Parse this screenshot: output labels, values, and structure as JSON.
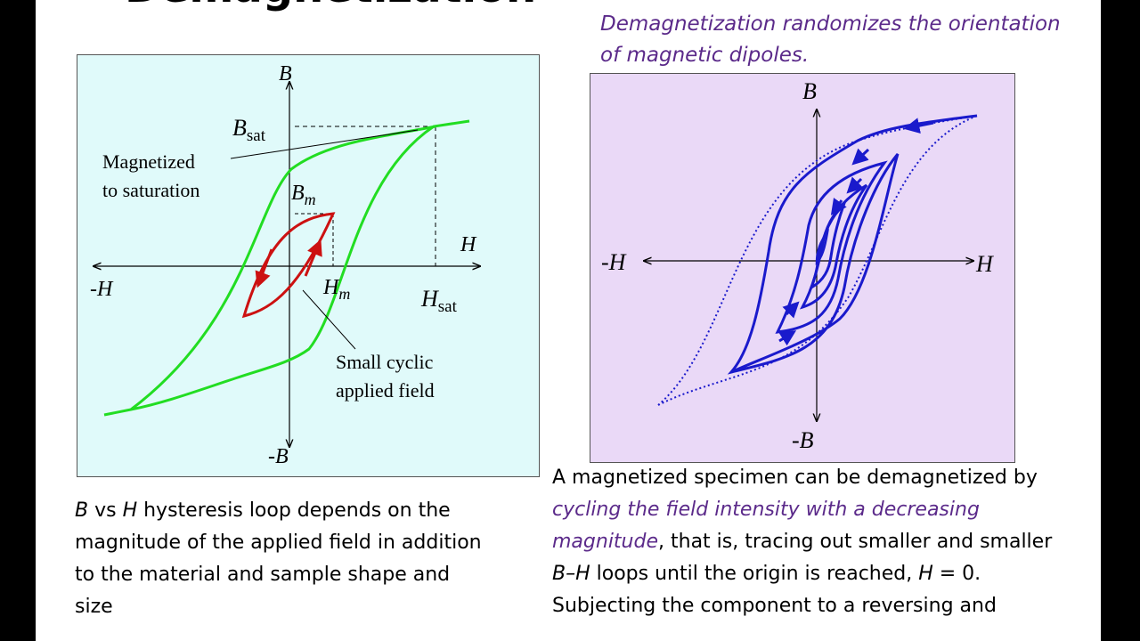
{
  "slide": {
    "title": "Demagnetization",
    "caption": "Demagnetization randomizes the orientation of magnetic dipoles."
  },
  "left_diagram": {
    "axis_y_label": "B",
    "axis_y_neg_label": "-B",
    "axis_x_label": "H",
    "axis_x_neg_label": "-H",
    "bsat_main": "B",
    "bsat_sub": "sat",
    "bm_main": "B",
    "bm_sub": "m",
    "hm_main": "H",
    "hm_sub": "m",
    "hsat_main": "H",
    "hsat_sub": "sat",
    "annotation_saturation_line1": "Magnetized",
    "annotation_saturation_line2": "to saturation",
    "annotation_small_line1": "Small cyclic",
    "annotation_small_line2": "applied field",
    "colors": {
      "major_loop": "#22dd22",
      "minor_loop": "#cc1111",
      "background": "#e0fafa"
    }
  },
  "right_diagram": {
    "axis_y_label": "B",
    "axis_y_neg_label": "-B",
    "axis_x_label": "H",
    "axis_x_neg_label": "-H",
    "colors": {
      "loops": "#1a1acc",
      "background": "#ead9f7"
    }
  },
  "left_text": {
    "b": "B",
    "vs": " vs ",
    "h": "H",
    "rest": " hysteresis loop depends on the magnitude of the applied field in addition to the material and sample shape and size"
  },
  "right_text": {
    "part1": "A magnetized specimen can be demagnetized by ",
    "emph": "cycling  the field intensity with a decreasing magnitude",
    "part2": ", that is, tracing out smaller and smaller ",
    "bh": "B–H",
    "part3": " loops until the origin is reached, ",
    "h": "H",
    "part4": " = 0.",
    "part5": "Subjecting the component to a reversing and"
  }
}
